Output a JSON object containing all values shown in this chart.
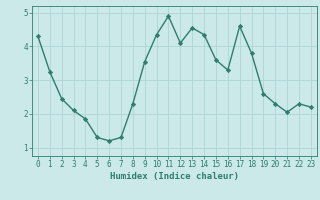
{
  "x": [
    0,
    1,
    2,
    3,
    4,
    5,
    6,
    7,
    8,
    9,
    10,
    11,
    12,
    13,
    14,
    15,
    16,
    17,
    18,
    19,
    20,
    21,
    22,
    23
  ],
  "y": [
    4.3,
    3.25,
    2.45,
    2.1,
    1.85,
    1.3,
    1.2,
    1.3,
    2.3,
    3.55,
    4.35,
    4.9,
    4.1,
    4.55,
    4.35,
    3.6,
    3.3,
    4.6,
    3.8,
    2.6,
    2.3,
    2.05,
    2.3,
    2.2
  ],
  "line_color": "#2e7d6e",
  "marker": "D",
  "marker_size": 2.2,
  "line_width": 1.0,
  "background_color": "#cce9e9",
  "grid_color": "#afd4d4",
  "xlabel": "Humidex (Indice chaleur)",
  "xlim": [
    -0.5,
    23.5
  ],
  "ylim": [
    0.75,
    5.2
  ],
  "yticks": [
    1,
    2,
    3,
    4,
    5
  ],
  "xticks": [
    0,
    1,
    2,
    3,
    4,
    5,
    6,
    7,
    8,
    9,
    10,
    11,
    12,
    13,
    14,
    15,
    16,
    17,
    18,
    19,
    20,
    21,
    22,
    23
  ],
  "xlabel_fontsize": 6.5,
  "tick_fontsize": 5.5,
  "tick_color": "#2e7d6e",
  "label_color": "#2e7d6e"
}
